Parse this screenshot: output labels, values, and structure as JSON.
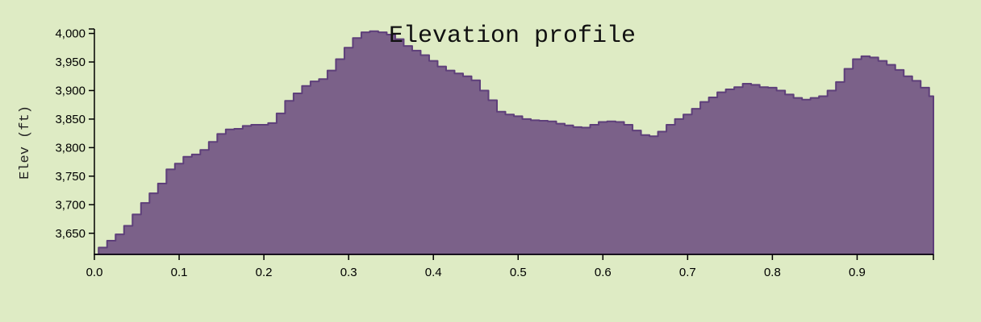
{
  "chart_data": {
    "type": "area",
    "title": "Elevation profile",
    "xlabel": "",
    "ylabel": "Elev (ft)",
    "xlim": [
      0,
      0.99
    ],
    "ylim": [
      3613,
      4005
    ],
    "x_ticks": [
      "0.0",
      "0.1",
      "0.2",
      "0.3",
      "0.4",
      "0.5",
      "0.6",
      "0.7",
      "0.8",
      "0.9"
    ],
    "y_ticks": [
      "3,650",
      "3,700",
      "3,750",
      "3,800",
      "3,850",
      "3,900",
      "3,950",
      "4,000"
    ],
    "grid": false,
    "colors": {
      "fill": "#7b6189",
      "stroke": "#5e3f7a",
      "axis": "#000000",
      "background": "#deebc4"
    },
    "series": [
      {
        "x": [
          0.0,
          0.01,
          0.02,
          0.03,
          0.04,
          0.05,
          0.06,
          0.07,
          0.08,
          0.09,
          0.1,
          0.11,
          0.12,
          0.13,
          0.14,
          0.15,
          0.16,
          0.17,
          0.18,
          0.19,
          0.2,
          0.21,
          0.22,
          0.23,
          0.24,
          0.25,
          0.26,
          0.27,
          0.28,
          0.29,
          0.3,
          0.31,
          0.32,
          0.33,
          0.34,
          0.35,
          0.36,
          0.37,
          0.38,
          0.39,
          0.4,
          0.41,
          0.42,
          0.43,
          0.44,
          0.45,
          0.46,
          0.47,
          0.48,
          0.49,
          0.5,
          0.51,
          0.52,
          0.53,
          0.54,
          0.55,
          0.56,
          0.57,
          0.58,
          0.59,
          0.6,
          0.61,
          0.62,
          0.63,
          0.64,
          0.65,
          0.66,
          0.67,
          0.68,
          0.69,
          0.7,
          0.71,
          0.72,
          0.73,
          0.74,
          0.75,
          0.76,
          0.77,
          0.78,
          0.79,
          0.8,
          0.81,
          0.82,
          0.83,
          0.84,
          0.85,
          0.86,
          0.87,
          0.88,
          0.89,
          0.9,
          0.91,
          0.92,
          0.93,
          0.94,
          0.95,
          0.96,
          0.97,
          0.98,
          0.99
        ],
        "y": [
          3613,
          3625,
          3637,
          3648,
          3663,
          3683,
          3703,
          3720,
          3737,
          3762,
          3772,
          3784,
          3788,
          3796,
          3810,
          3824,
          3832,
          3833,
          3838,
          3840,
          3840,
          3843,
          3860,
          3882,
          3895,
          3908,
          3916,
          3920,
          3935,
          3955,
          3975,
          3992,
          4002,
          4004,
          4002,
          3998,
          3990,
          3978,
          3970,
          3962,
          3952,
          3942,
          3935,
          3930,
          3925,
          3918,
          3900,
          3883,
          3863,
          3858,
          3855,
          3850,
          3848,
          3847,
          3846,
          3842,
          3839,
          3836,
          3835,
          3840,
          3845,
          3846,
          3845,
          3840,
          3830,
          3822,
          3820,
          3828,
          3840,
          3850,
          3858,
          3868,
          3880,
          3888,
          3897,
          3902,
          3906,
          3912,
          3910,
          3906,
          3905,
          3900,
          3893,
          3887,
          3884,
          3887,
          3890,
          3900,
          3915,
          3938,
          3955,
          3960,
          3958,
          3952,
          3945,
          3936,
          3925,
          3917,
          3905,
          3890
        ]
      }
    ]
  }
}
